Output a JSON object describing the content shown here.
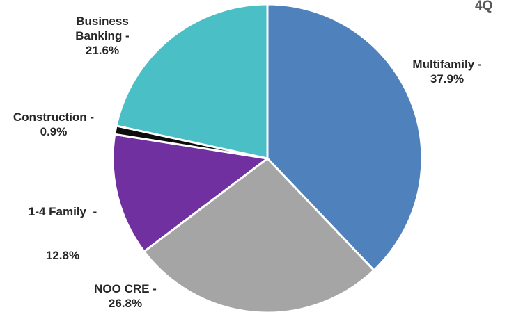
{
  "chart_data": {
    "type": "pie",
    "title_fragment": "4Q",
    "categories": [
      "Multifamily",
      "NOO CRE",
      "1-4 Family",
      "Construction",
      "Business Banking"
    ],
    "values": [
      37.9,
      26.8,
      12.8,
      0.9,
      21.6
    ],
    "labels": [
      {
        "name": "Multifamily -",
        "value": "37.9%"
      },
      {
        "name": "NOO CRE -",
        "value": "26.8%"
      },
      {
        "name": "1-4 Family  -",
        "value": "12.8%"
      },
      {
        "name": "Construction -",
        "value": "0.9%"
      },
      {
        "name_line1": "Business",
        "name_line2": "Banking -",
        "value": "21.6%"
      }
    ],
    "colors": [
      "#4f81bd",
      "#a5a5a5",
      "#7030a0",
      "#0d0d0d",
      "#4bbfc6"
    ],
    "start_angle": "12 o'clock",
    "direction": "clockwise",
    "legend": "none"
  }
}
